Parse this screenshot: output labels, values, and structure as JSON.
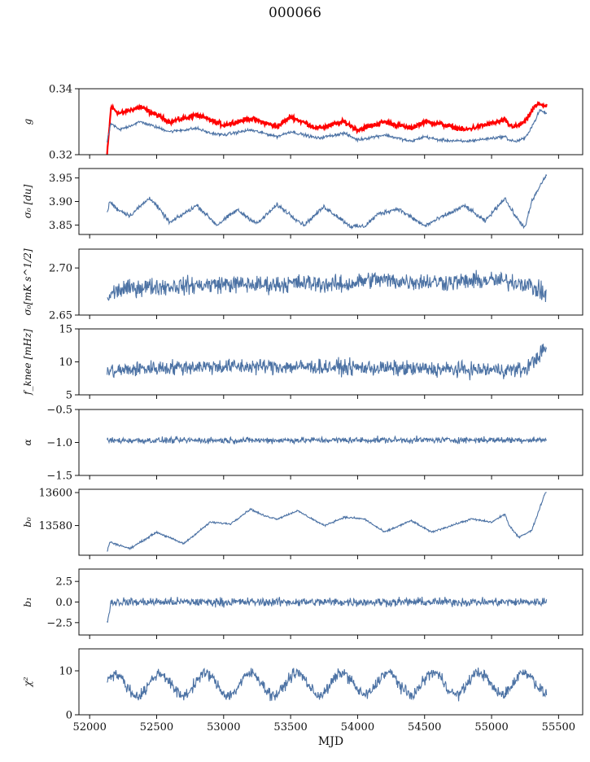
{
  "title": "000066",
  "x_axis": {
    "label": "MJD",
    "ticks": [
      52000,
      52500,
      53000,
      53500,
      54000,
      54500,
      55000,
      55500
    ],
    "range": [
      51920,
      55680
    ]
  },
  "colors": {
    "series": "#4c72a4",
    "highlight": "#ff0000",
    "axis": "#111111"
  },
  "chart_data": [
    {
      "type": "line",
      "ylabel": "g",
      "ylim": [
        0.32,
        0.34
      ],
      "yticks": [
        0.32,
        0.34
      ],
      "x_start": 52130,
      "x_end": 55410,
      "series": [
        {
          "color": "#ff0000",
          "noise": 0.0006,
          "x": [
            52130,
            52160,
            52220,
            52380,
            52450,
            52600,
            52800,
            52900,
            53000,
            53200,
            53400,
            53500,
            53700,
            53900,
            54000,
            54200,
            54400,
            54500,
            54600,
            54800,
            55000,
            55100,
            55130,
            55180,
            55250,
            55320,
            55360,
            55410
          ],
          "values": [
            0.32,
            0.3345,
            0.3325,
            0.3345,
            0.333,
            0.33,
            0.332,
            0.3305,
            0.329,
            0.331,
            0.3285,
            0.3315,
            0.328,
            0.33,
            0.3275,
            0.33,
            0.328,
            0.33,
            0.3295,
            0.3275,
            0.3295,
            0.3305,
            0.329,
            0.3285,
            0.33,
            0.3345,
            0.3355,
            0.3345
          ]
        },
        {
          "color": "#4c72a4",
          "noise": 0.0004,
          "x": [
            52130,
            52160,
            52220,
            52380,
            52450,
            52600,
            52800,
            52900,
            53000,
            53200,
            53400,
            53500,
            53700,
            53900,
            54000,
            54200,
            54400,
            54500,
            54600,
            54800,
            55000,
            55100,
            55130,
            55180,
            55250,
            55320,
            55360,
            55410
          ],
          "values": [
            0.324,
            0.3295,
            0.3275,
            0.33,
            0.329,
            0.327,
            0.328,
            0.3265,
            0.326,
            0.3275,
            0.3255,
            0.327,
            0.325,
            0.3265,
            0.3245,
            0.326,
            0.324,
            0.3255,
            0.3245,
            0.324,
            0.325,
            0.3255,
            0.3245,
            0.324,
            0.325,
            0.33,
            0.3335,
            0.3325
          ]
        }
      ]
    },
    {
      "type": "line",
      "ylabel": "σ₀ [du]",
      "ylim": [
        3.83,
        3.97
      ],
      "yticks": [
        3.85,
        3.9,
        3.95
      ],
      "x_start": 52130,
      "x_end": 55410,
      "series": [
        {
          "color": "#4c72a4",
          "noise": 0.004,
          "x": [
            52130,
            52150,
            52200,
            52300,
            52450,
            52600,
            52800,
            52950,
            53100,
            53250,
            53400,
            53600,
            53750,
            53950,
            54050,
            54150,
            54300,
            54500,
            54600,
            54800,
            54950,
            55100,
            55130,
            55200,
            55250,
            55300,
            55400
          ],
          "values": [
            3.875,
            3.9,
            3.885,
            3.87,
            3.908,
            3.855,
            3.892,
            3.85,
            3.882,
            3.853,
            3.893,
            3.85,
            3.889,
            3.847,
            3.847,
            3.873,
            3.885,
            3.848,
            3.863,
            3.891,
            3.858,
            3.908,
            3.89,
            3.86,
            3.845,
            3.9,
            3.953
          ]
        }
      ]
    },
    {
      "type": "line",
      "ylabel": "σ₀[mK s^1/2]",
      "ylim": [
        2.65,
        2.72
      ],
      "yticks": [
        2.65,
        2.7
      ],
      "x_start": 52130,
      "x_end": 55410,
      "series": [
        {
          "color": "#4c72a4",
          "noise": 0.008,
          "x": [
            52130,
            52200,
            52400,
            52700,
            53000,
            53300,
            53600,
            53900,
            54100,
            54300,
            54700,
            55000,
            55250,
            55400
          ],
          "values": [
            2.668,
            2.676,
            2.68,
            2.681,
            2.683,
            2.682,
            2.684,
            2.682,
            2.688,
            2.686,
            2.685,
            2.687,
            2.684,
            2.672
          ]
        }
      ]
    },
    {
      "type": "line",
      "ylabel": "f_knee [mHz]",
      "ylim": [
        5,
        15
      ],
      "yticks": [
        5,
        10,
        15
      ],
      "x_start": 52130,
      "x_end": 55410,
      "series": [
        {
          "color": "#4c72a4",
          "noise": 1.0,
          "x": [
            52130,
            52400,
            52800,
            53300,
            53800,
            54300,
            54800,
            55250,
            55330,
            55400
          ],
          "values": [
            8.5,
            9.0,
            9.3,
            9.3,
            9.2,
            9.0,
            8.8,
            8.8,
            10.5,
            12.0
          ]
        }
      ]
    },
    {
      "type": "line",
      "ylabel": "α",
      "ylim": [
        -1.5,
        -0.5
      ],
      "yticks": [
        -1.5,
        -1.0,
        -0.5
      ],
      "x_start": 52130,
      "x_end": 55410,
      "series": [
        {
          "color": "#4c72a4",
          "noise": 0.04,
          "x": [
            52130,
            55410
          ],
          "values": [
            -0.97,
            -0.96
          ]
        }
      ]
    },
    {
      "type": "line",
      "ylabel": "b₀",
      "ylim": [
        13562,
        13602
      ],
      "yticks": [
        13580,
        13600
      ],
      "x_start": 52130,
      "x_end": 55410,
      "series": [
        {
          "color": "#4c72a4",
          "noise": 0.5,
          "x": [
            52130,
            52150,
            52300,
            52500,
            52700,
            52900,
            53050,
            53200,
            53300,
            53400,
            53550,
            53750,
            53900,
            54050,
            54200,
            54400,
            54550,
            54700,
            54850,
            55000,
            55100,
            55130,
            55200,
            55300,
            55400
          ],
          "values": [
            13564,
            13570,
            13566,
            13576,
            13569,
            13582,
            13581,
            13590,
            13586,
            13584,
            13589,
            13580,
            13585,
            13584,
            13576,
            13583,
            13576,
            13580,
            13584,
            13582,
            13587,
            13580,
            13573,
            13577,
            13600
          ]
        }
      ]
    },
    {
      "type": "line",
      "ylabel": "b₁",
      "ylim": [
        -4,
        4
      ],
      "yticks": [
        -2.5,
        0.0,
        2.5
      ],
      "x_start": 52130,
      "x_end": 55410,
      "series": [
        {
          "color": "#4c72a4",
          "noise": 0.45,
          "x": [
            52130,
            52160,
            52300,
            54500,
            55000,
            55400
          ],
          "values": [
            -2.5,
            0.0,
            0.0,
            0.0,
            0.0,
            0.0
          ]
        }
      ]
    },
    {
      "type": "line",
      "ylabel": "χ²",
      "ylim": [
        0,
        15
      ],
      "yticks": [
        0,
        10
      ],
      "x_start": 52130,
      "x_end": 55410,
      "series": [
        {
          "color": "#4c72a4",
          "noise": 1.1,
          "periodic": {
            "period": 340,
            "amplitude": 2.5
          },
          "x": [
            52130,
            55410
          ],
          "values": [
            6.8,
            7.2
          ]
        }
      ]
    }
  ]
}
